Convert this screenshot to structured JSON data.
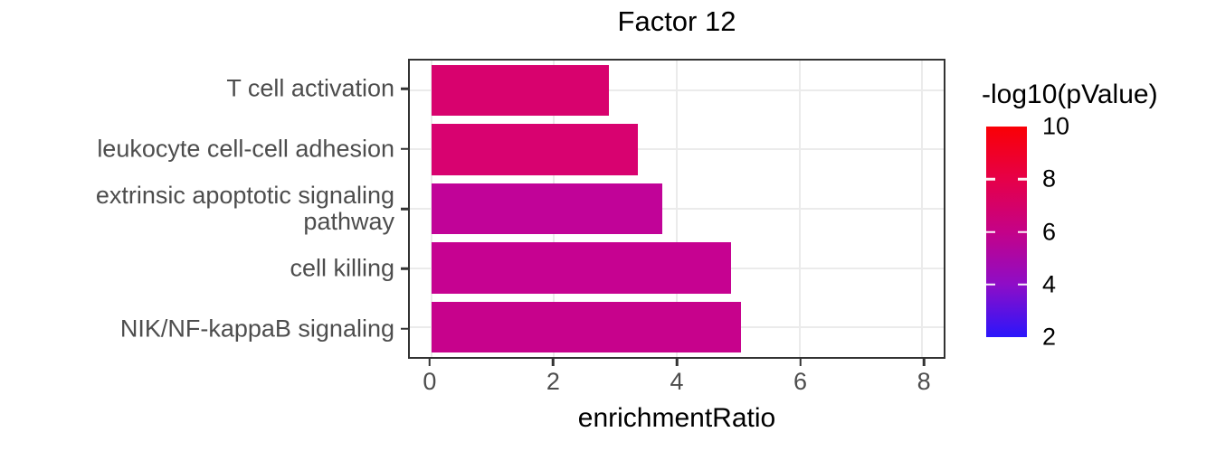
{
  "chart_data": {
    "type": "bar",
    "orientation": "horizontal",
    "title": "Factor 12",
    "xlabel": "enrichmentRatio",
    "categories": [
      "T cell activation",
      "leukocyte cell-cell adhesion",
      "extrinsic apoptotic signaling pathway",
      "cell killing",
      "NIK/NF-kappaB signaling"
    ],
    "values": [
      2.89,
      3.37,
      3.76,
      4.88,
      5.05
    ],
    "bar_colors": [
      "#D8026E",
      "#D80270",
      "#C10398",
      "#C60291",
      "#C7028C"
    ],
    "x_ticks": [
      0,
      2,
      4,
      6,
      8
    ],
    "xlim": [
      -0.35,
      8.35
    ],
    "grid": true,
    "legend": {
      "title": "-log10(pValue)",
      "type": "colorbar",
      "position": "right",
      "min": 2,
      "max": 10,
      "ticks": [
        10,
        8,
        6,
        4,
        2
      ],
      "inner_tick_values": [
        8,
        6,
        4
      ],
      "gradient_top_to_bottom": [
        "#FA0005",
        "#E60048",
        "#C40288",
        "#8E0DC7",
        "#2B16FB"
      ]
    }
  },
  "colors": {
    "background": "#FFFFFF",
    "axis_text": "#4D4D4D",
    "title_text": "#000000",
    "panel_border": "#333333",
    "gridline": "#EBEBEB",
    "tick_mark": "#333333"
  }
}
